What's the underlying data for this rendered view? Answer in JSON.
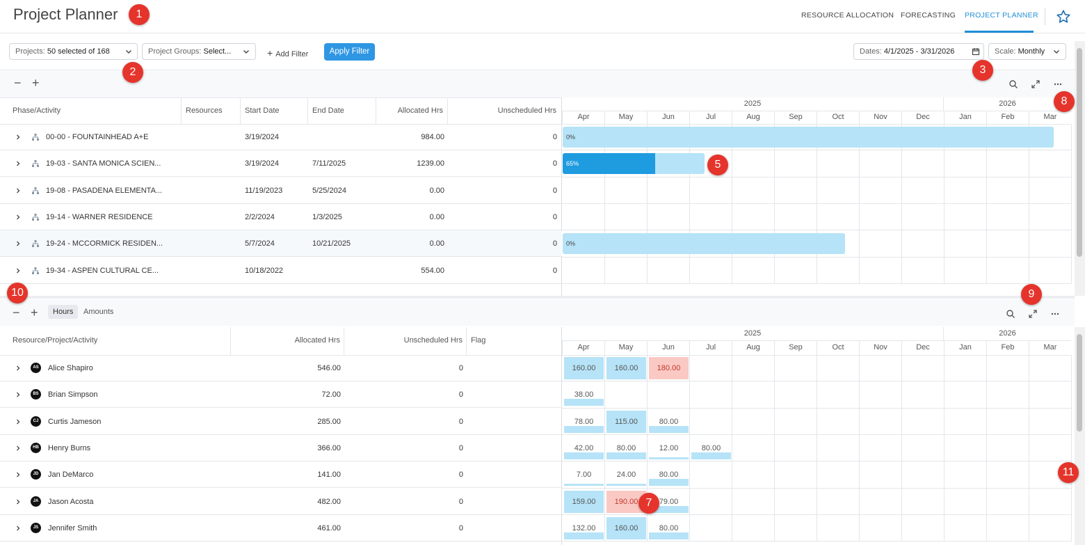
{
  "header": {
    "title": "Project Planner",
    "nav": [
      "RESOURCE ALLOCATION",
      "FORECASTING",
      "PROJECT PLANNER"
    ]
  },
  "filters": {
    "projects_label": "Projects:",
    "projects_value": "50 selected of 168",
    "groups_label": "Project Groups:",
    "groups_value": "Select...",
    "add_filter": "Add Filter",
    "apply": "Apply Filter",
    "dates_label": "Dates:",
    "dates_value": "4/1/2025 - 3/31/2026",
    "scale_label": "Scale:",
    "scale_value": "Monthly"
  },
  "badges": [
    "1",
    "2",
    "3",
    "5",
    "7",
    "8",
    "9",
    "10",
    "11"
  ],
  "top": {
    "columns": [
      "Phase/Activity",
      "Resources",
      "Start Date",
      "End Date",
      "Allocated Hrs",
      "Unscheduled Hrs"
    ],
    "rows": [
      {
        "name": "00-00 - FOUNTAINHEAD A+E",
        "start": "3/19/2024",
        "end": "",
        "alloc": "984.00",
        "unsched": "0",
        "bar": "0%",
        "progress": 0
      },
      {
        "name": "19-03 - SANTA MONICA SCIEN...",
        "start": "3/19/2024",
        "end": "7/11/2025",
        "alloc": "1239.00",
        "unsched": "0",
        "bar": "65%",
        "progress": 0.65
      },
      {
        "name": "19-08 - PASADENA ELEMENTA...",
        "start": "11/19/2023",
        "end": "5/25/2024",
        "alloc": "0.00",
        "unsched": "0",
        "bar": "",
        "progress": 0
      },
      {
        "name": "19-14 - WARNER RESIDENCE",
        "start": "2/2/2024",
        "end": "1/3/2025",
        "alloc": "0.00",
        "unsched": "0",
        "bar": "",
        "progress": 0
      },
      {
        "name": "19-24 - MCCORMICK RESIDEN...",
        "start": "5/7/2024",
        "end": "10/21/2025",
        "alloc": "0.00",
        "unsched": "0",
        "bar": "0%",
        "progress": 0
      },
      {
        "name": "19-34 - ASPEN CULTURAL CE...",
        "start": "10/18/2022",
        "end": "",
        "alloc": "554.00",
        "unsched": "0",
        "bar": "",
        "progress": 0
      }
    ]
  },
  "timeline": {
    "years": [
      "2025",
      "2026"
    ],
    "months": [
      "Apr",
      "May",
      "Jun",
      "Jul",
      "Aug",
      "Sep",
      "Oct",
      "Nov",
      "Dec",
      "Jan",
      "Feb",
      "Mar"
    ]
  },
  "bottom": {
    "tabs": [
      "Hours",
      "Amounts"
    ],
    "columns": [
      "Resource/Project/Activity",
      "Allocated Hrs",
      "Unscheduled Hrs",
      "Flag"
    ],
    "rows": [
      {
        "initials": "AS",
        "name": "Alice Shapiro",
        "alloc": "546.00",
        "unsched": "0",
        "cells": [
          "160.00",
          "160.00",
          "180.00"
        ],
        "states": [
          "blue",
          "blue",
          "red"
        ]
      },
      {
        "initials": "BS",
        "name": "Brian Simpson",
        "alloc": "72.00",
        "unsched": "0",
        "cells": [
          "38.00"
        ],
        "states": [
          "bar"
        ]
      },
      {
        "initials": "CJ",
        "name": "Curtis Jameson",
        "alloc": "285.00",
        "unsched": "0",
        "cells": [
          "78.00",
          "115.00",
          "80.00"
        ],
        "states": [
          "bar",
          "blue",
          "bar"
        ]
      },
      {
        "initials": "HB",
        "name": "Henry Burns",
        "alloc": "366.00",
        "unsched": "0",
        "cells": [
          "42.00",
          "80.00",
          "12.00",
          "80.00"
        ],
        "states": [
          "bar",
          "bar",
          "thin",
          "bar"
        ]
      },
      {
        "initials": "JD",
        "name": "Jan DeMarco",
        "alloc": "141.00",
        "unsched": "0",
        "cells": [
          "7.00",
          "24.00",
          "80.00"
        ],
        "states": [
          "thin",
          "thin",
          "bar"
        ]
      },
      {
        "initials": "JA",
        "name": "Jason Acosta",
        "alloc": "482.00",
        "unsched": "0",
        "cells": [
          "159.00",
          "190.00",
          "79.00"
        ],
        "states": [
          "blue",
          "red",
          "bar"
        ]
      },
      {
        "initials": "JS",
        "name": "Jennifer Smith",
        "alloc": "461.00",
        "unsched": "0",
        "cells": [
          "132.00",
          "160.00",
          "80.00"
        ],
        "states": [
          "bar",
          "blue",
          "bar"
        ]
      }
    ]
  }
}
